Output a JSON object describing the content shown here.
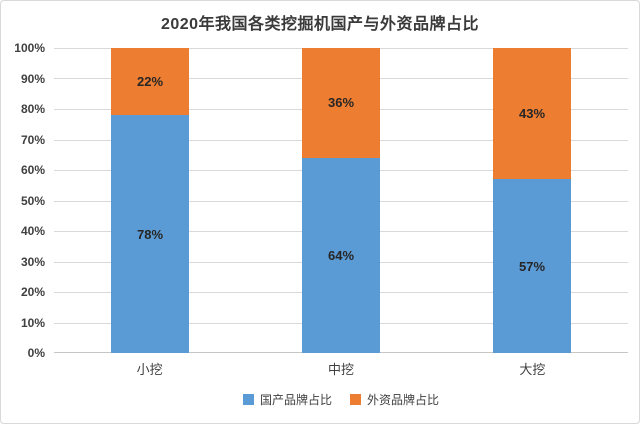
{
  "chart_data": {
    "type": "bar",
    "stacked": true,
    "title": "2020年我国各类挖掘机国产与外资品牌占比",
    "categories": [
      "小挖",
      "中挖",
      "大挖"
    ],
    "series": [
      {
        "name": "国产品牌占比",
        "color": "#5B9BD5",
        "values": [
          78,
          64,
          57
        ],
        "labels": [
          "78%",
          "64%",
          "57%"
        ]
      },
      {
        "name": "外资品牌占比",
        "color": "#ED7D31",
        "values": [
          22,
          36,
          43
        ],
        "labels": [
          "22%",
          "36%",
          "43%"
        ]
      }
    ],
    "xlabel": "",
    "ylabel": "",
    "ylim": [
      0,
      100
    ],
    "yticks": {
      "values": [
        0,
        10,
        20,
        30,
        40,
        50,
        60,
        70,
        80,
        90,
        100
      ],
      "labels": [
        "0%",
        "10%",
        "20%",
        "30%",
        "40%",
        "50%",
        "60%",
        "70%",
        "80%",
        "90%",
        "100%"
      ]
    },
    "grid": true,
    "legend_position": "bottom",
    "colors": {
      "gridline": "#d9d9d9",
      "axis_line": "#c6c6c6",
      "axis_text": "#404040",
      "data_label": "#262626",
      "title_text": "#3a3a3a",
      "border": "#d9d9d9",
      "background": "#ffffff"
    }
  }
}
